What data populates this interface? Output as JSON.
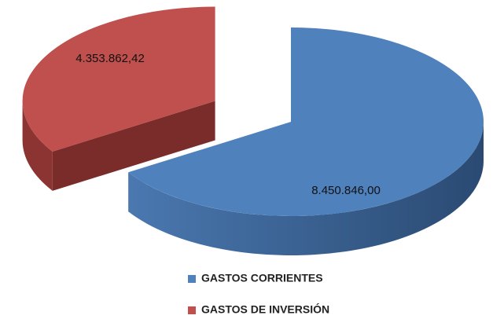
{
  "chart_data": {
    "type": "pie",
    "categories": [
      "GASTOS CORRIENTES",
      "GASTOS DE INVERSIÓN"
    ],
    "values": [
      8450846.0,
      4353862.42
    ],
    "value_labels": [
      "8.450.846,00",
      "4.353.862,42"
    ],
    "colors": [
      "#4f81bd",
      "#c0504d"
    ],
    "legend": "bottom"
  }
}
